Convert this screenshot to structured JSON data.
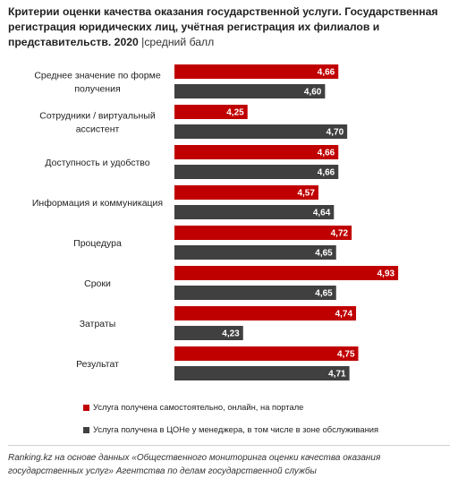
{
  "header": {
    "title": "Критерии оценки качества оказания государственной услуги. Государственная регистрация юридических лиц, учётная регистрация их филиалов и представительств. 2020",
    "subtitle": "|средний балл"
  },
  "chart_data": {
    "type": "bar",
    "orientation": "horizontal",
    "title": "Критерии оценки качества оказания государственной услуги. Государственная регистрация юридических лиц, учётная регистрация их филиалов и представительств. 2020",
    "unit": "средний балл",
    "categories": [
      "Среднее значение по форме получения",
      "Сотрудники / виртуальный ассистент",
      "Доступность и удобство",
      "Информация и коммуникация",
      "Процедура",
      "Сроки",
      "Затраты",
      "Результат"
    ],
    "category_lines": [
      [
        "Среднее значение по форме",
        "получения"
      ],
      [
        "Сотрудники / виртуальный",
        "ассистент"
      ],
      [
        "Доступность и удобство"
      ],
      [
        "Информация и коммуникация"
      ],
      [
        "Процедура"
      ],
      [
        "Сроки"
      ],
      [
        "Затраты"
      ],
      [
        "Результат"
      ]
    ],
    "series": [
      {
        "name": "Услуга получена самостоятельно, онлайн, на портале",
        "color": "#c00000",
        "values": [
          4.66,
          4.25,
          4.66,
          4.57,
          4.72,
          4.93,
          4.74,
          4.75
        ],
        "labels": [
          "4,66",
          "4,25",
          "4,66",
          "4,57",
          "4,72",
          "4,93",
          "4,74",
          "4,75"
        ]
      },
      {
        "name": "Услуга получена в ЦОНе у менеджера, в том числе в зоне обслуживания",
        "color": "#404040",
        "values": [
          4.6,
          4.7,
          4.66,
          4.64,
          4.65,
          4.65,
          4.23,
          4.71
        ],
        "labels": [
          "4,60",
          "4,70",
          "4,66",
          "4,64",
          "4,65",
          "4,65",
          "4,23",
          "4,71"
        ]
      }
    ],
    "xlim": [
      3.92,
      4.97
    ],
    "grid": false,
    "legend_position": "bottom"
  },
  "source": "Ranking.kz на основе данных «Общественного мониторинга оценки качества оказания государственных услуг» Агентства по делам государственной службы"
}
